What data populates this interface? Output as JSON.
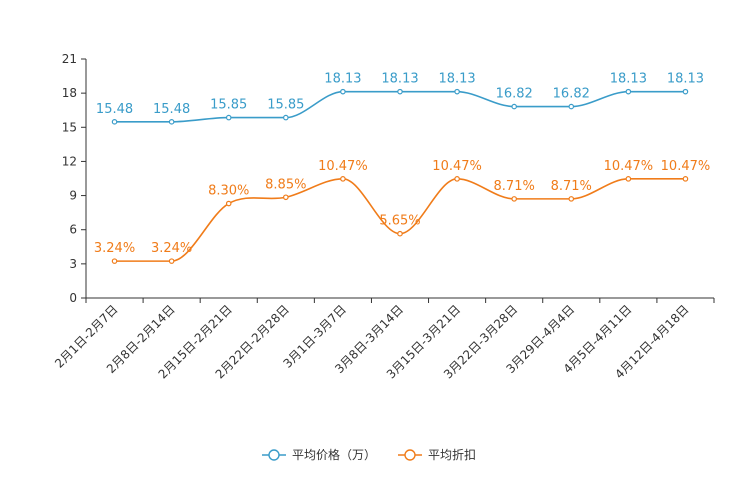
{
  "chart_data": {
    "type": "line",
    "title": "",
    "xlabel": "",
    "ylabel": "",
    "ylim": [
      0,
      21
    ],
    "yticks": [
      0,
      3,
      6,
      9,
      12,
      15,
      18,
      21
    ],
    "grid": false,
    "legend_position": "bottom-center",
    "categories": [
      "2月1日-2月7日",
      "2月8日-2月14日",
      "2月15日-2月21日",
      "2月22日-2月28日",
      "3月1日-3月7日",
      "3月8日-3月14日",
      "3月15日-3月21日",
      "3月22日-3月28日",
      "3月29日-4月4日",
      "4月5日-4月11日",
      "4月12日-4月18日"
    ],
    "series": [
      {
        "name": "平均价格（万）",
        "color": "#3a9cc9",
        "values": [
          15.48,
          15.48,
          15.85,
          15.85,
          18.13,
          18.13,
          18.13,
          16.82,
          16.82,
          18.13,
          18.13
        ],
        "labels": [
          "15.48",
          "15.48",
          "15.85",
          "15.85",
          "18.13",
          "18.13",
          "18.13",
          "16.82",
          "16.82",
          "18.13",
          "18.13"
        ]
      },
      {
        "name": "平均折扣",
        "color": "#f07c1a",
        "values": [
          3.24,
          3.24,
          8.3,
          8.85,
          10.47,
          5.65,
          10.47,
          8.71,
          8.71,
          10.47,
          10.47
        ],
        "labels": [
          "3.24%",
          "3.24%",
          "8.30%",
          "8.85%",
          "10.47%",
          "5.65%",
          "10.47%",
          "8.71%",
          "8.71%",
          "10.47%",
          "10.47%"
        ]
      }
    ]
  }
}
